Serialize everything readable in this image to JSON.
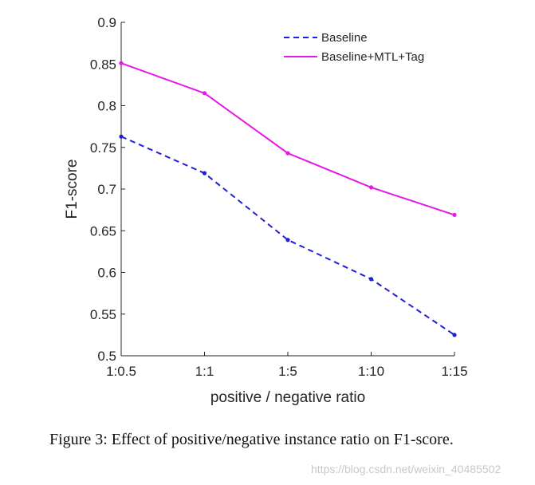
{
  "chart_data": {
    "type": "line",
    "title": "",
    "xlabel": "positive / negative ratio",
    "ylabel": "F1-score",
    "categories": [
      "1:0.5",
      "1:1",
      "1:5",
      "1:10",
      "1:15"
    ],
    "ylim": [
      0.5,
      0.9
    ],
    "yticks": [
      "0.5",
      "0.55",
      "0.6",
      "0.65",
      "0.7",
      "0.75",
      "0.8",
      "0.85",
      "0.9"
    ],
    "grid": false,
    "legend_position": "top-right",
    "series": [
      {
        "name": "Baseline",
        "values": [
          0.763,
          0.719,
          0.639,
          0.592,
          0.525
        ],
        "color": "#1f1fd6",
        "style": "dashed"
      },
      {
        "name": "Baseline+MTL+Tag",
        "values": [
          0.851,
          0.815,
          0.743,
          0.702,
          0.669
        ],
        "color": "#e619e6",
        "style": "solid"
      }
    ]
  },
  "caption": "Figure 3: Effect of positive/negative instance ratio on F1-score.",
  "watermark": "https://blog.csdn.net/weixin_40485502"
}
